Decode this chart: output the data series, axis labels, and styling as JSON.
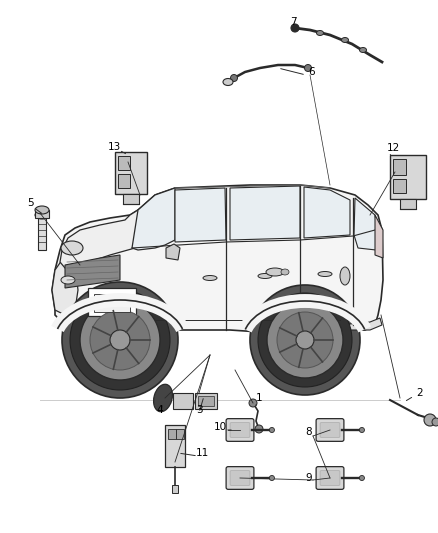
{
  "background_color": "#ffffff",
  "line_color": "#2a2a2a",
  "fig_width": 4.38,
  "fig_height": 5.33,
  "dpi": 100,
  "car": {
    "body_color": "#f5f5f5",
    "window_color": "#e8eef2",
    "wheel_color": "#cccccc",
    "rim_color": "#aaaaaa"
  },
  "parts_color": "#e0e0e0",
  "dark_part_color": "#555555",
  "label_fontsize": 7.5
}
